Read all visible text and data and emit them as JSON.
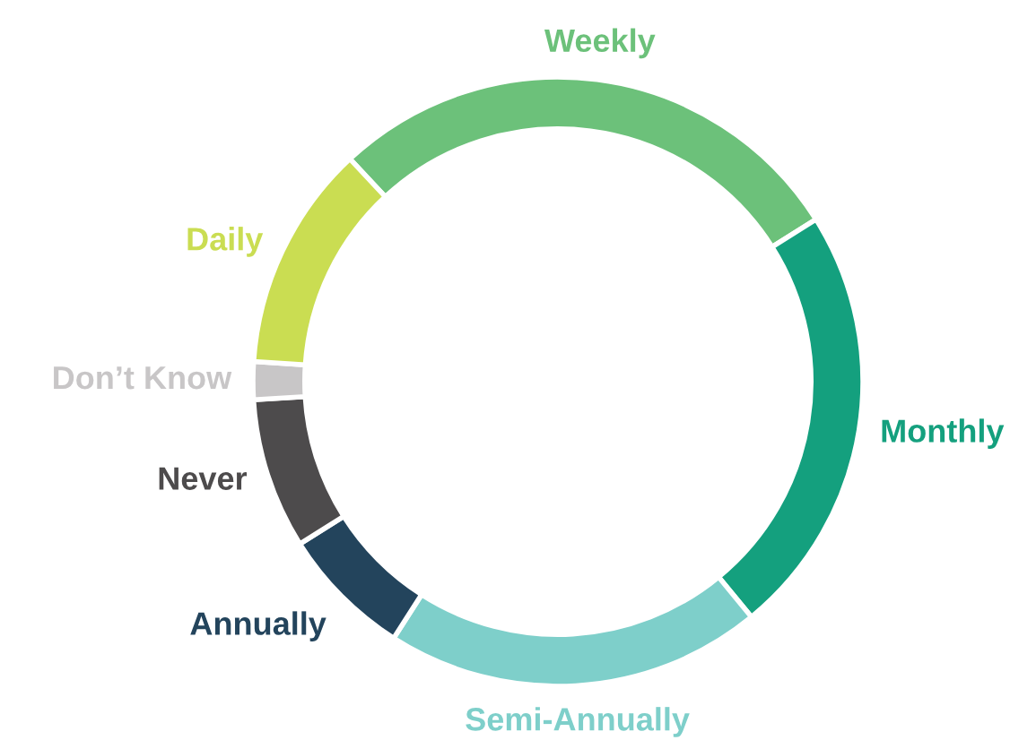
{
  "chart_data": {
    "type": "donut",
    "categories": [
      "Weekly",
      "Monthly",
      "Semi-Annually",
      "Annually",
      "Never",
      "Don’t Know",
      "Daily"
    ],
    "values": [
      28,
      23,
      20,
      7,
      8,
      2,
      12
    ],
    "colors": [
      "#6cc17a",
      "#14a07e",
      "#7ecfca",
      "#23445c",
      "#4d4b4c",
      "#c8c6c7",
      "#cadd52"
    ]
  }
}
